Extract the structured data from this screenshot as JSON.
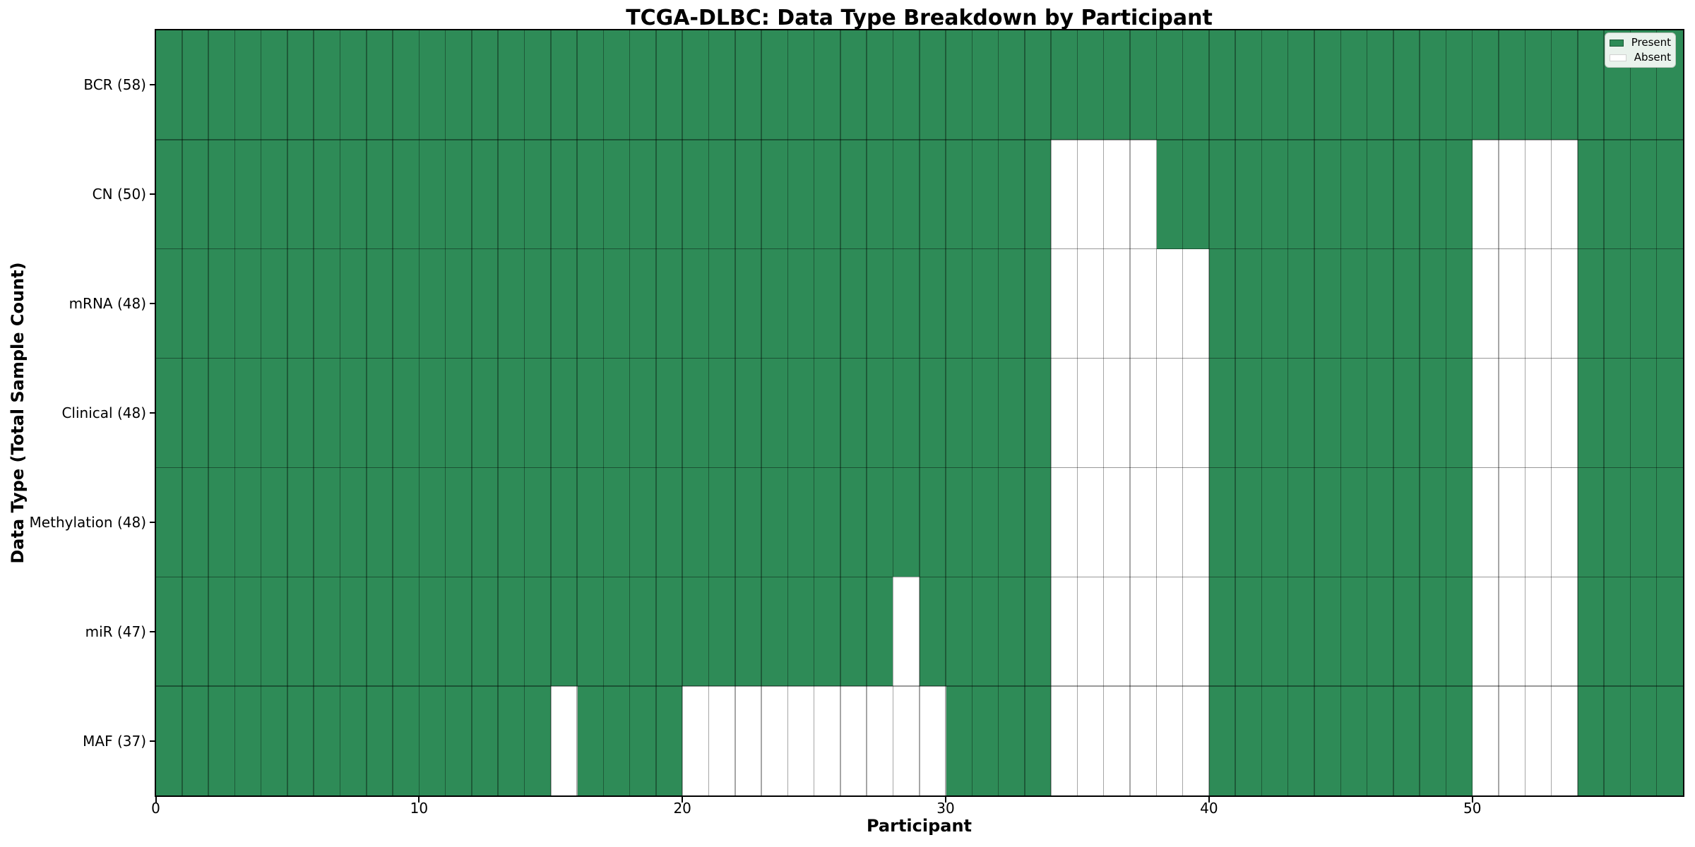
{
  "chart_data": {
    "type": "heatmap",
    "title": "TCGA-DLBC: Data Type Breakdown by Participant",
    "xlabel": "Participant",
    "ylabel": "Data Type (Total Sample Count)",
    "n_participants": 58,
    "x_axis_range": [
      0,
      58
    ],
    "x_ticks": [
      0,
      10,
      20,
      30,
      40,
      50
    ],
    "grid": true,
    "legend_position": "upper right",
    "legend": {
      "entries": [
        {
          "label": "Present",
          "color": "#2e8b57"
        },
        {
          "label": "Absent",
          "color": "#ffffff"
        }
      ]
    },
    "colors": {
      "present": "#2e8b57",
      "absent": "#ffffff",
      "grid_line": "rgba(0,0,0,0.35)"
    },
    "rows": [
      {
        "data_type": "BCR",
        "count": 58,
        "label": "BCR (58)",
        "absent_participants": []
      },
      {
        "data_type": "CN",
        "count": 50,
        "label": "CN (50)",
        "absent_participants": [
          34,
          35,
          36,
          37,
          50,
          51,
          52,
          53
        ]
      },
      {
        "data_type": "mRNA",
        "count": 48,
        "label": "mRNA (48)",
        "absent_participants": [
          34,
          35,
          36,
          37,
          38,
          39,
          50,
          51,
          52,
          53
        ]
      },
      {
        "data_type": "Clinical",
        "count": 48,
        "label": "Clinical (48)",
        "absent_participants": [
          34,
          35,
          36,
          37,
          38,
          39,
          50,
          51,
          52,
          53
        ]
      },
      {
        "data_type": "Methylation",
        "count": 48,
        "label": "Methylation (48)",
        "absent_participants": [
          34,
          35,
          36,
          37,
          38,
          39,
          50,
          51,
          52,
          53
        ]
      },
      {
        "data_type": "miR",
        "count": 47,
        "label": "miR (47)",
        "absent_participants": [
          28,
          34,
          35,
          36,
          37,
          38,
          39,
          50,
          51,
          52,
          53
        ]
      },
      {
        "data_type": "MAF",
        "count": 37,
        "label": "MAF (37)",
        "absent_participants": [
          15,
          20,
          21,
          22,
          23,
          24,
          25,
          26,
          27,
          28,
          29,
          34,
          35,
          36,
          37,
          38,
          39,
          50,
          51,
          52,
          53
        ]
      }
    ]
  }
}
